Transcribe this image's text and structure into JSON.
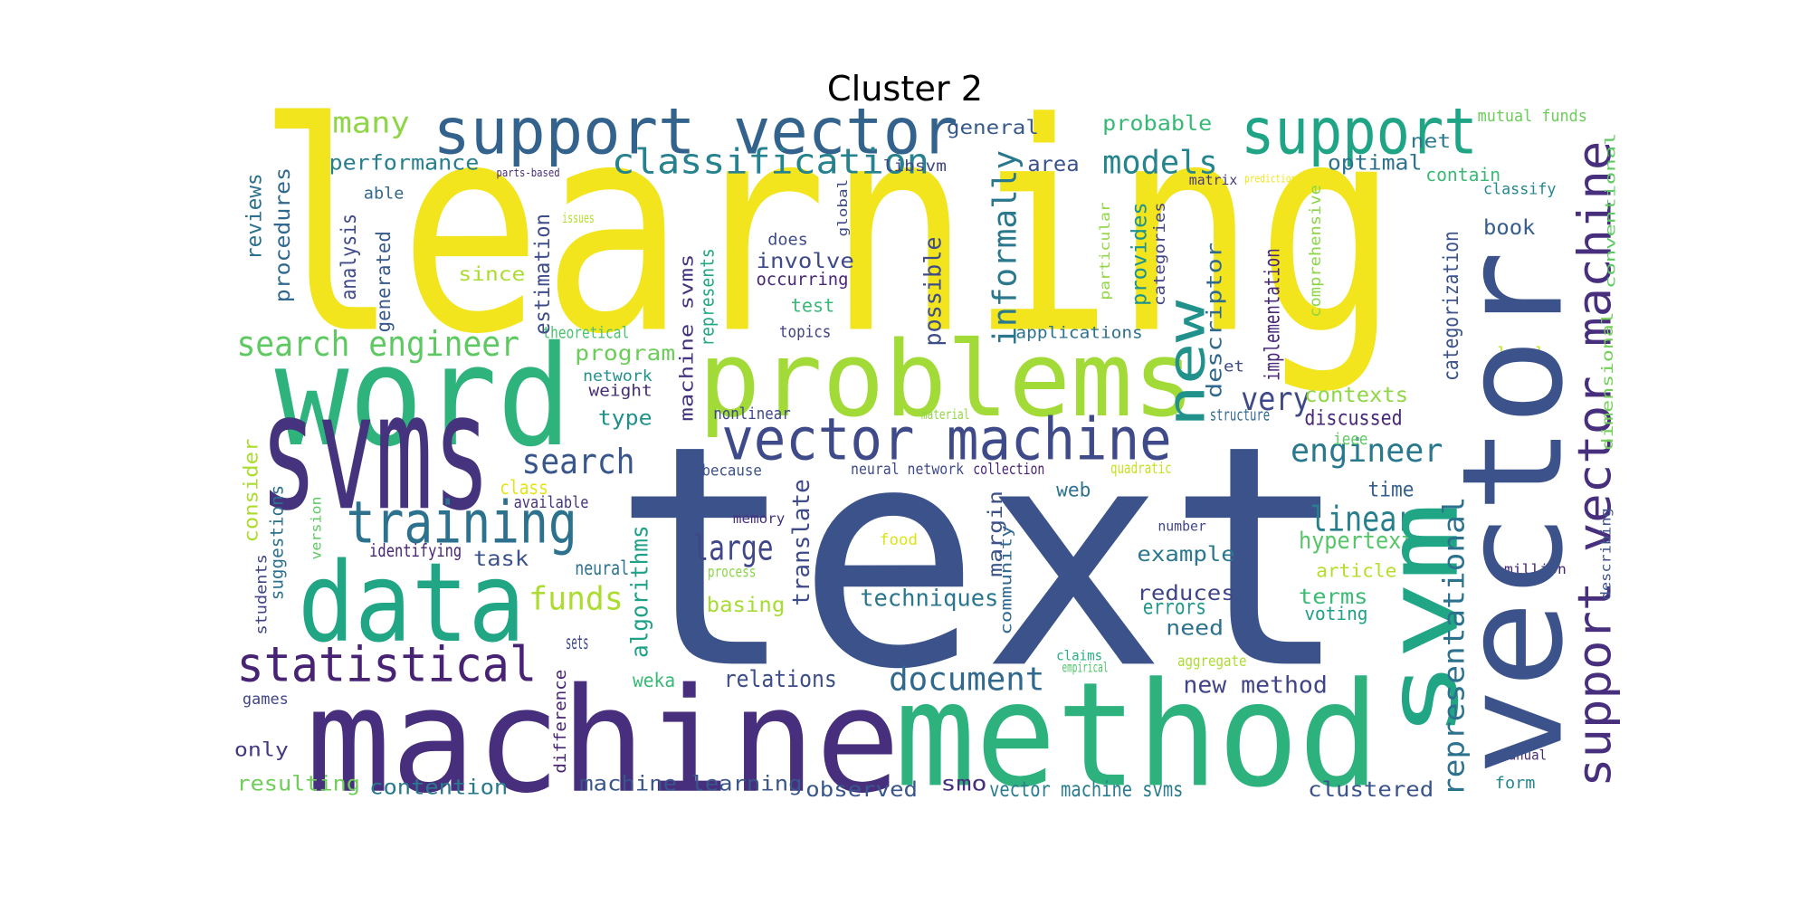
{
  "chart_data": {
    "type": "wordcloud",
    "title": "Cluster 2",
    "words": [
      {
        "text": "learning",
        "color": "#f2e51d"
      },
      {
        "text": "text",
        "color": "#3b528b"
      },
      {
        "text": "machine",
        "color": "#472f7d"
      },
      {
        "text": "method",
        "color": "#2db27d"
      },
      {
        "text": "word",
        "color": "#2eb37c"
      },
      {
        "text": "svms",
        "color": "#46337e"
      },
      {
        "text": "data",
        "color": "#21a685"
      },
      {
        "text": "problems",
        "color": "#a2da37"
      },
      {
        "text": "support vector",
        "color": "#33638d"
      },
      {
        "text": "support",
        "color": "#20a486"
      },
      {
        "text": "vector machine",
        "color": "#3e4a89"
      },
      {
        "text": "training",
        "color": "#2c728e"
      },
      {
        "text": "statistical",
        "color": "#482374"
      },
      {
        "text": "classification",
        "color": "#26828e"
      },
      {
        "text": "search engineer",
        "color": "#5ec962"
      },
      {
        "text": "engineer",
        "color": "#2a788e"
      },
      {
        "text": "search",
        "color": "#39568c"
      },
      {
        "text": "linear",
        "color": "#277f8e"
      },
      {
        "text": "large",
        "color": "#3f4788"
      },
      {
        "text": "document",
        "color": "#31688e"
      },
      {
        "text": "models",
        "color": "#25858e"
      },
      {
        "text": "funds",
        "color": "#addc30"
      },
      {
        "text": "very",
        "color": "#3e4989"
      },
      {
        "text": "many",
        "color": "#8ed645"
      },
      {
        "text": "hypertext",
        "color": "#55c667"
      },
      {
        "text": "new method",
        "color": "#414487"
      },
      {
        "text": "relations",
        "color": "#3d4d8a"
      },
      {
        "text": "techniques",
        "color": "#2a768e"
      },
      {
        "text": "contexts",
        "color": "#8fd744"
      },
      {
        "text": "discussed",
        "color": "#482979"
      },
      {
        "text": "example",
        "color": "#2a778e"
      },
      {
        "text": "reduces",
        "color": "#40458a"
      },
      {
        "text": "errors",
        "color": "#1f988b"
      },
      {
        "text": "need",
        "color": "#2d718e"
      },
      {
        "text": "terms",
        "color": "#3bbb75"
      },
      {
        "text": "article",
        "color": "#b5de2b"
      },
      {
        "text": "time",
        "color": "#35608d"
      },
      {
        "text": "voting",
        "color": "#1fa088"
      },
      {
        "text": "performance",
        "color": "#277f8e"
      },
      {
        "text": "general",
        "color": "#38598c"
      },
      {
        "text": "probable",
        "color": "#38b977"
      },
      {
        "text": "optimal",
        "color": "#2c728e"
      },
      {
        "text": "net",
        "color": "#297a8e"
      },
      {
        "text": "mutual funds",
        "color": "#6ccd5a"
      },
      {
        "text": "contain",
        "color": "#3aba76"
      },
      {
        "text": "classify",
        "color": "#24868e"
      },
      {
        "text": "book",
        "color": "#355e8d"
      },
      {
        "text": "area",
        "color": "#3b528b"
      },
      {
        "text": "libsvm",
        "color": "#3f4788"
      },
      {
        "text": "matrix",
        "color": "#453781"
      },
      {
        "text": "parts-based",
        "color": "#472d7b"
      },
      {
        "text": "able",
        "color": "#31688e"
      },
      {
        "text": "does",
        "color": "#3e4c8a"
      },
      {
        "text": "involve",
        "color": "#3e4a89"
      },
      {
        "text": "occurring",
        "color": "#482878"
      },
      {
        "text": "since",
        "color": "#addc30"
      },
      {
        "text": "test",
        "color": "#38b977"
      },
      {
        "text": "topics",
        "color": "#404387"
      },
      {
        "text": "theoretical",
        "color": "#4ac16d"
      },
      {
        "text": "applications",
        "color": "#2c718e"
      },
      {
        "text": "program",
        "color": "#6ccd5a"
      },
      {
        "text": "network",
        "color": "#20928c"
      },
      {
        "text": "weight",
        "color": "#472c7a"
      },
      {
        "text": "type",
        "color": "#21918c"
      },
      {
        "text": "nonlinear",
        "color": "#3e4989"
      },
      {
        "text": "material",
        "color": "#8fd744"
      },
      {
        "text": "structure",
        "color": "#31688e"
      },
      {
        "text": "ieee",
        "color": "#5ec962"
      },
      {
        "text": "because",
        "color": "#3b528b"
      },
      {
        "text": "neural network",
        "color": "#3e4a89"
      },
      {
        "text": "collection",
        "color": "#481f71"
      },
      {
        "text": "quadratic",
        "color": "#c8e020"
      },
      {
        "text": "class",
        "color": "#e5e419"
      },
      {
        "text": "available",
        "color": "#46337e"
      },
      {
        "text": "web",
        "color": "#2c728e"
      },
      {
        "text": "memory",
        "color": "#46307e"
      },
      {
        "text": "number",
        "color": "#404688"
      },
      {
        "text": "task",
        "color": "#3b528b"
      },
      {
        "text": "neural",
        "color": "#2c728e"
      },
      {
        "text": "identifying",
        "color": "#482475"
      },
      {
        "text": "food",
        "color": "#dde318"
      },
      {
        "text": "process",
        "color": "#8bd646"
      },
      {
        "text": "basing",
        "color": "#a8db34"
      },
      {
        "text": "sets",
        "color": "#3e4989"
      },
      {
        "text": "million",
        "color": "#482475"
      },
      {
        "text": "claims",
        "color": "#29af7f"
      },
      {
        "text": "empirical",
        "color": "#50c46a"
      },
      {
        "text": "aggregate",
        "color": "#addc30"
      },
      {
        "text": "games",
        "color": "#404688"
      },
      {
        "text": "weka",
        "color": "#38b977"
      },
      {
        "text": "only",
        "color": "#453882"
      },
      {
        "text": "resulting",
        "color": "#6ece58"
      },
      {
        "text": "contention",
        "color": "#2a788e"
      },
      {
        "text": "machine learning",
        "color": "#39568c"
      },
      {
        "text": "observed",
        "color": "#39568c"
      },
      {
        "text": "smo",
        "color": "#472f7d"
      },
      {
        "text": "vector machine svms",
        "color": "#287c8e"
      },
      {
        "text": "clustered",
        "color": "#3b528b"
      },
      {
        "text": "form",
        "color": "#24868e"
      },
      {
        "text": "manual",
        "color": "#482878"
      },
      {
        "text": "local",
        "color": "#c2df23"
      },
      {
        "text": "issues",
        "color": "#b5de2b"
      },
      {
        "text": "prediction",
        "color": "#f2e51d"
      },
      {
        "text": "et",
        "color": "#3e4a89"
      },
      {
        "text": "svm",
        "color": "#21a685"
      },
      {
        "text": "vector",
        "color": "#3b528b"
      },
      {
        "text": "support vector machine",
        "color": "#472f7d"
      },
      {
        "text": "new",
        "color": "#21918c"
      },
      {
        "text": "informally",
        "color": "#2a788e"
      },
      {
        "text": "possible",
        "color": "#3e4c8a"
      },
      {
        "text": "implementation",
        "color": "#482878"
      },
      {
        "text": "descriptor",
        "color": "#31688e"
      },
      {
        "text": "provides",
        "color": "#20928c"
      },
      {
        "text": "categories",
        "color": "#404387"
      },
      {
        "text": "particular",
        "color": "#8fd744"
      },
      {
        "text": "categorization",
        "color": "#3b528b"
      },
      {
        "text": "representational",
        "color": "#2c728e"
      },
      {
        "text": "comprehensive",
        "color": "#8bd646"
      },
      {
        "text": "conventional",
        "color": "#5ec962"
      },
      {
        "text": "dimensional",
        "color": "#73d056"
      },
      {
        "text": "describing",
        "color": "#3b528b"
      },
      {
        "text": "reviews",
        "color": "#2d708e"
      },
      {
        "text": "procedures",
        "color": "#31688e"
      },
      {
        "text": "analysis",
        "color": "#3e4a89"
      },
      {
        "text": "generated",
        "color": "#38598c"
      },
      {
        "text": "estimation",
        "color": "#3e4c8a"
      },
      {
        "text": "represents",
        "color": "#22a884"
      },
      {
        "text": "machine svms",
        "color": "#46337e"
      },
      {
        "text": "algorithms",
        "color": "#1fa188"
      },
      {
        "text": "translate",
        "color": "#3e4a89"
      },
      {
        "text": "community",
        "color": "#31688e"
      },
      {
        "text": "margin",
        "color": "#3b528b"
      },
      {
        "text": "consider",
        "color": "#addc30"
      },
      {
        "text": "suggestions",
        "color": "#2c728e"
      },
      {
        "text": "students",
        "color": "#404387"
      },
      {
        "text": "version",
        "color": "#5ec962"
      },
      {
        "text": "difference",
        "color": "#482475"
      },
      {
        "text": "global",
        "color": "#3e4a89"
      }
    ]
  }
}
